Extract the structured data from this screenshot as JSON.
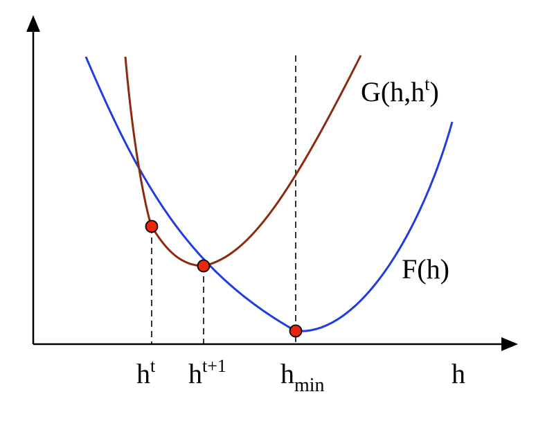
{
  "diagram": {
    "curves": {
      "F": {
        "label": "F(h)",
        "color": "#1f3de0"
      },
      "G": {
        "label_main": "G(h,h",
        "label_sup": "t",
        "label_close": ")",
        "color": "#8b2a0e"
      }
    },
    "points": {
      "fill": "#e8260c",
      "stroke": "#000000"
    },
    "ticks": {
      "ht": {
        "base": "h",
        "sup": "t"
      },
      "ht1": {
        "base": "h",
        "sup": "t+1"
      },
      "hmin": {
        "base": "h",
        "sub": "min"
      }
    },
    "xlabel": "h",
    "axis_color": "#000000",
    "guide_style": "dashed"
  }
}
